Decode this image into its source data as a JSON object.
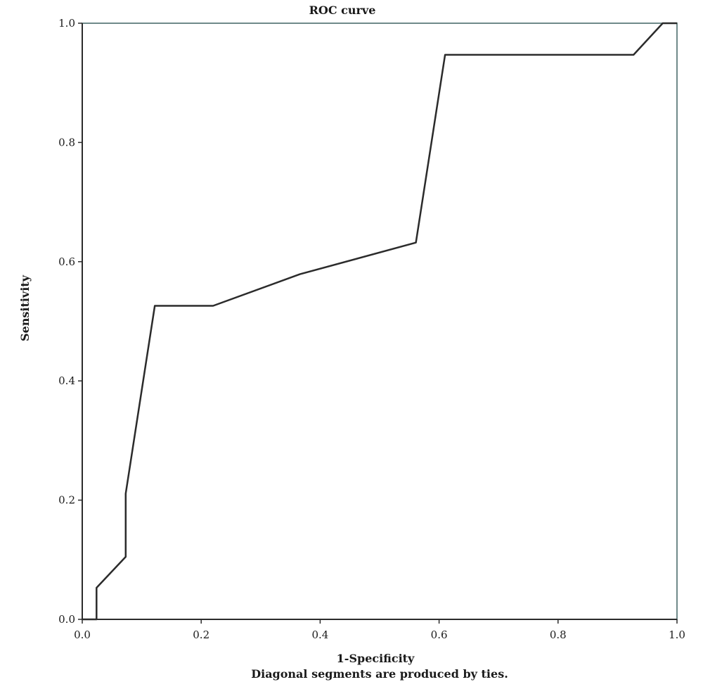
{
  "chart_data": {
    "type": "line",
    "title": "ROC curve",
    "xlabel": "1-Specificity",
    "ylabel": "Sensitivity",
    "footnote": "Diagonal segments are produced by ties.",
    "xlim": [
      0,
      1
    ],
    "ylim": [
      0,
      1
    ],
    "x_ticks": [
      "0.0",
      "0.2",
      "0.4",
      "0.6",
      "0.8",
      "1.0"
    ],
    "y_ticks": [
      "0.0",
      "0.2",
      "0.4",
      "0.6",
      "0.8",
      "1.0"
    ],
    "grid": false,
    "series": [
      {
        "x": [
          0.0,
          0.024,
          0.024,
          0.073,
          0.073,
          0.122,
          0.22,
          0.366,
          0.561,
          0.61,
          0.927,
          0.976,
          1.0
        ],
        "y": [
          0.0,
          0.0,
          0.053,
          0.105,
          0.211,
          0.526,
          0.526,
          0.579,
          0.632,
          0.947,
          0.947,
          1.0,
          1.0
        ]
      }
    ],
    "colors": {
      "curve": "#2b2b2b",
      "frame": "#6f8a8a",
      "axes": "#2b2b2b",
      "text": "#1a1a1a"
    }
  }
}
